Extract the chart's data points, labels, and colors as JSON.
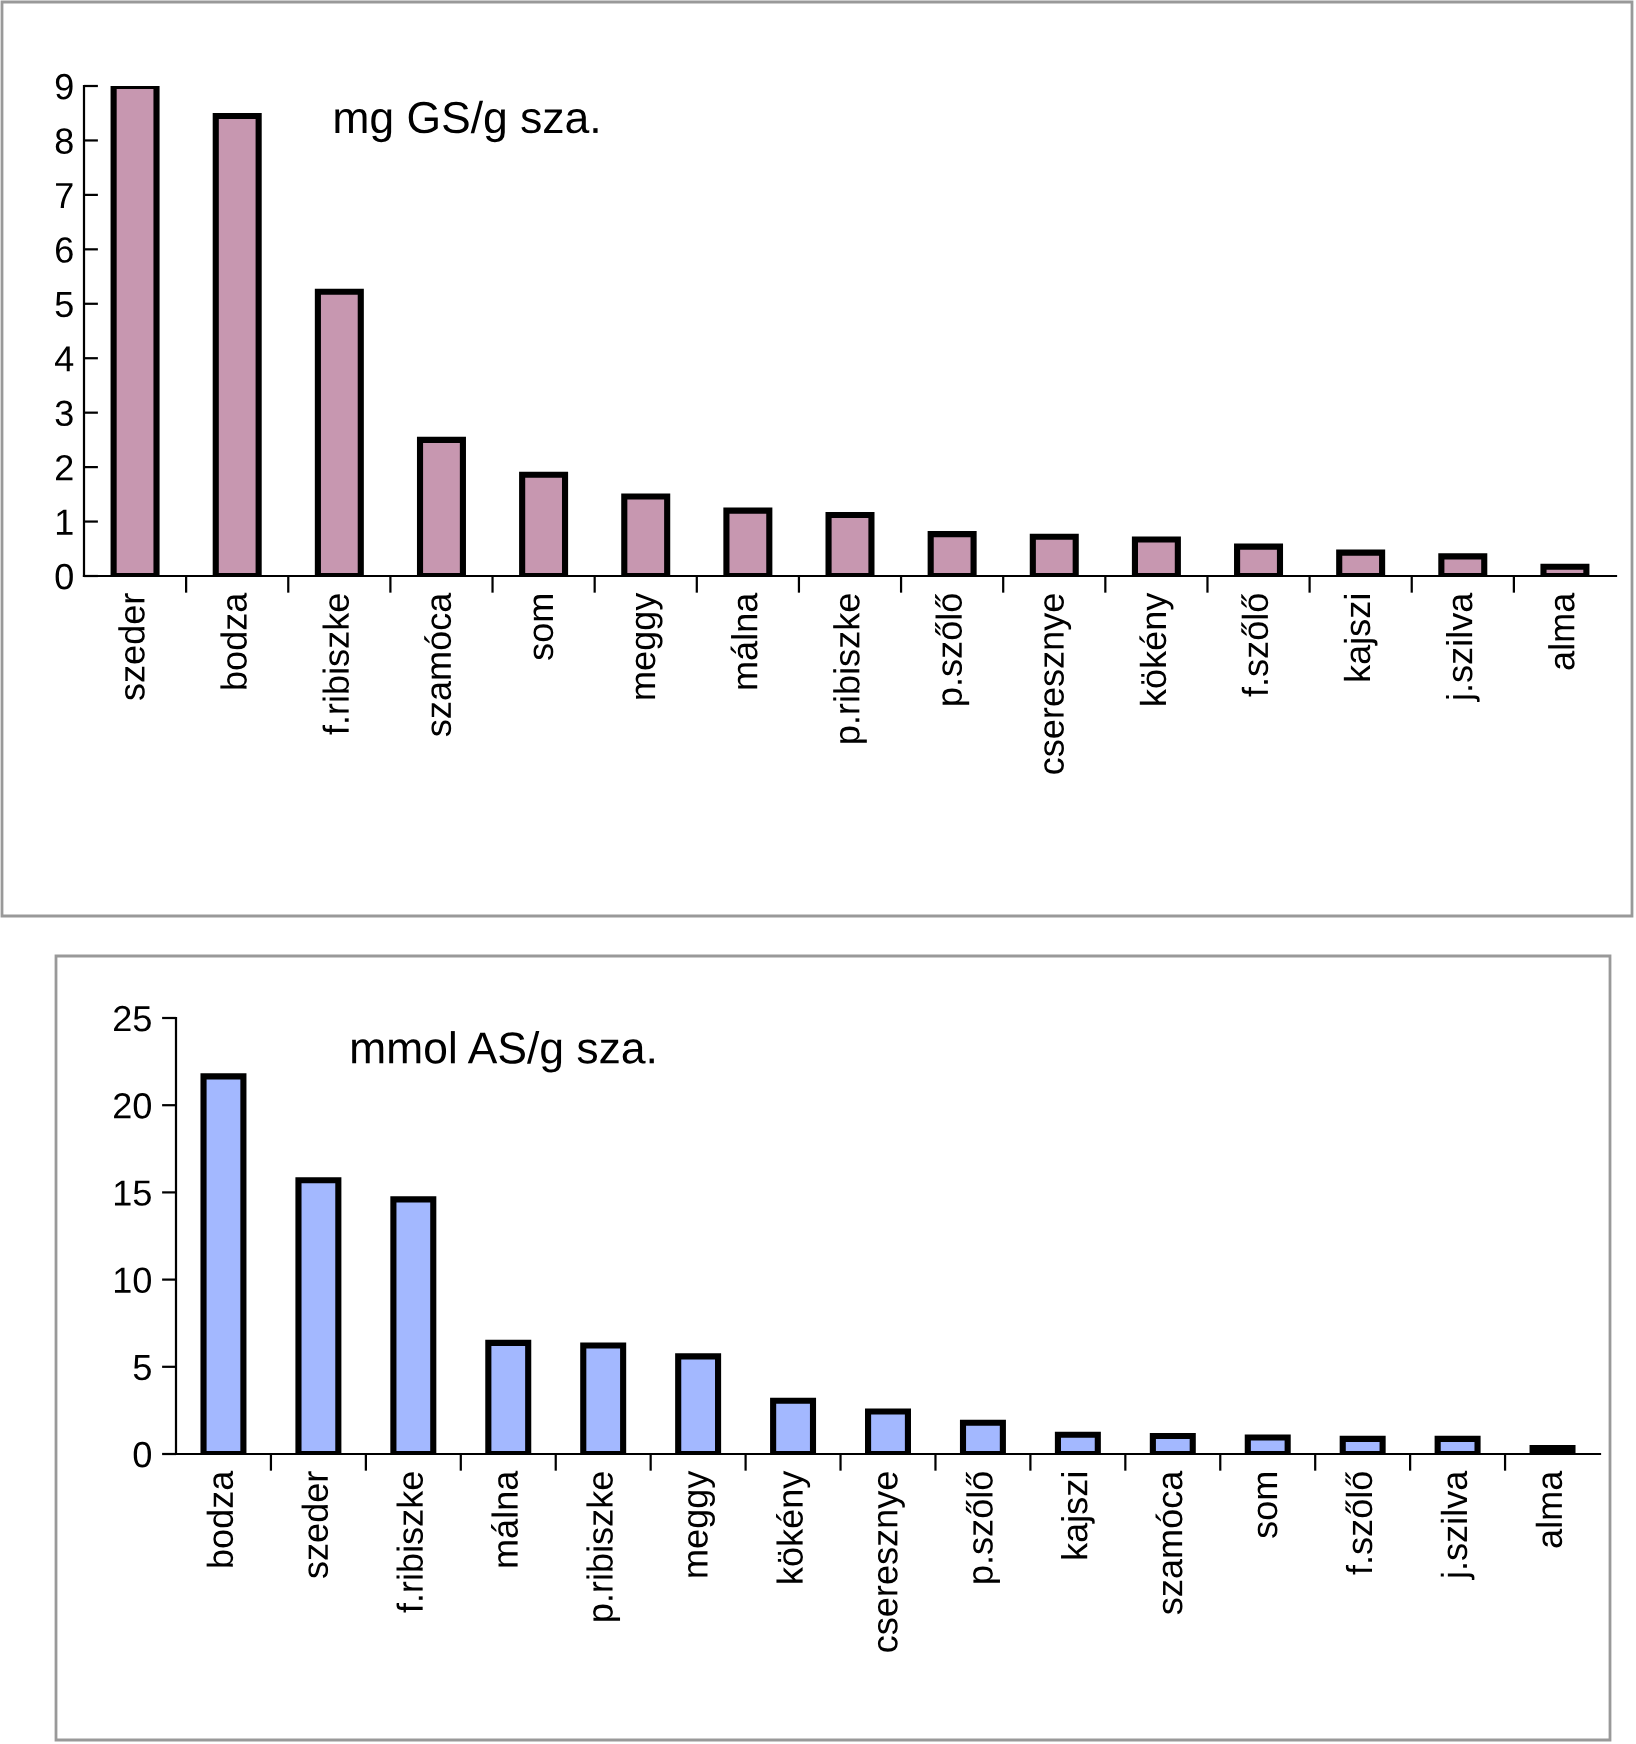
{
  "chart_data": [
    {
      "type": "bar",
      "title": "mg GS/g sza.",
      "categories": [
        "szeder",
        "bodza",
        "f.ribiszke",
        "szamóca",
        "som",
        "meggy",
        "málna",
        "p.ribiszke",
        "p.szőlő",
        "cseresznye",
        "kökény",
        "f.szőlő",
        "kajszi",
        "j.szilva",
        "alma"
      ],
      "values": [
        9,
        8.45,
        5.22,
        2.5,
        1.86,
        1.46,
        1.2,
        1.12,
        0.77,
        0.72,
        0.67,
        0.54,
        0.43,
        0.36,
        0.17
      ],
      "color": "#c797b0",
      "ylim": [
        0,
        9
      ],
      "yticks": [
        0,
        1,
        2,
        3,
        4,
        5,
        6,
        7,
        8,
        9
      ],
      "grid": false,
      "legend": false
    },
    {
      "type": "bar",
      "title": "mmol AS/g sza.",
      "categories": [
        "bodza",
        "szeder",
        "f.ribiszke",
        "málna",
        "p.ribiszke",
        "meggy",
        "kökény",
        "cseresznye",
        "p.szőlő",
        "kajszi",
        "szamóca",
        "som",
        "f.szőlő",
        "j.szilva",
        "alma"
      ],
      "values": [
        21.65,
        15.7,
        14.6,
        6.37,
        6.22,
        5.6,
        3.05,
        2.44,
        1.79,
        1.1,
        1.03,
        0.95,
        0.87,
        0.87,
        0.34
      ],
      "color": "#a3b8ff",
      "ylim": [
        0,
        25
      ],
      "yticks": [
        0,
        5,
        10,
        15,
        20,
        25
      ],
      "grid": false,
      "legend": false
    }
  ]
}
